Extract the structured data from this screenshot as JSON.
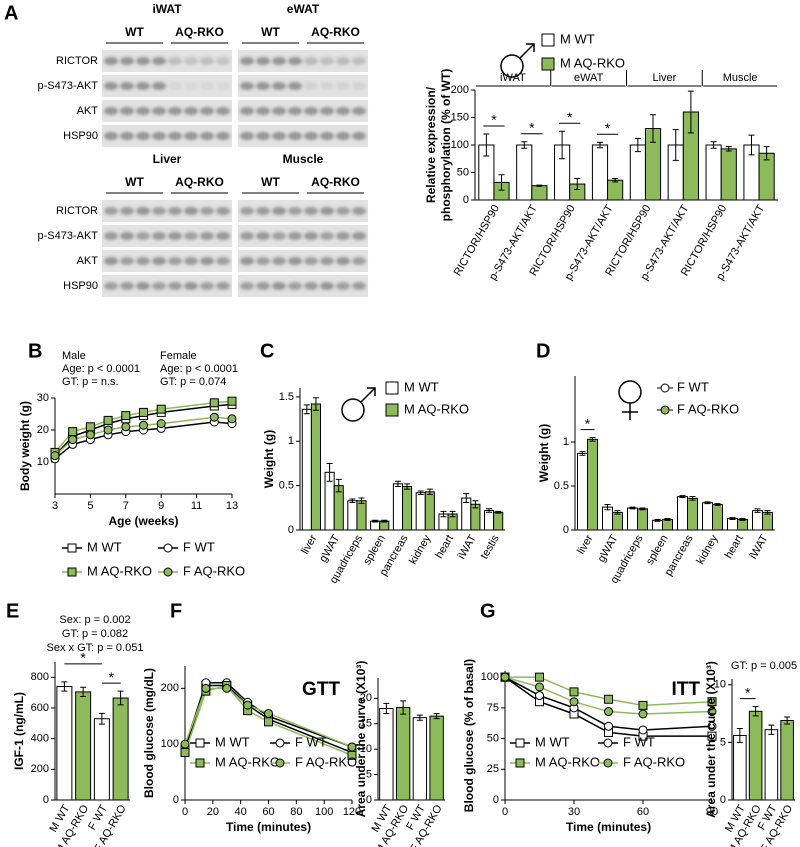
{
  "panel_labels": [
    "A",
    "B",
    "C",
    "D",
    "E",
    "F",
    "G"
  ],
  "blots": {
    "rows": [
      "RICTOR",
      "p-S473-AKT",
      "AKT",
      "HSP90"
    ],
    "panels": [
      {
        "tissue": "iWAT",
        "groups": [
          "WT",
          "AQ-RKO"
        ]
      },
      {
        "tissue": "eWAT",
        "groups": [
          "WT",
          "AQ-RKO"
        ]
      },
      {
        "tissue": "Liver",
        "groups": [
          "WT",
          "AQ-RKO"
        ]
      },
      {
        "tissue": "Muscle",
        "groups": [
          "WT",
          "AQ-RKO"
        ]
      }
    ]
  },
  "chart_data": [
    {
      "type": "bar",
      "ylabel": [
        "Relative expression/",
        "phosphorylation (% of WT)"
      ],
      "groups": [
        {
          "name": "iWAT",
          "categories": [
            "RICTOR/HSP90",
            "p-S473-AKT/AKT"
          ]
        },
        {
          "name": "eWAT",
          "categories": [
            "RICTOR/HSP90",
            "p-S473-AKT/AKT"
          ]
        },
        {
          "name": "Liver",
          "categories": [
            "RICTOR/HSP90",
            "p-S473-AKT/AKT"
          ]
        },
        {
          "name": "Muscle",
          "categories": [
            "RICTOR/HSP90",
            "p-S473-AKT/AKT"
          ]
        }
      ],
      "series": [
        {
          "name": "M WT",
          "color": "#ffffff",
          "values": [
            100,
            100,
            100,
            100,
            100,
            100,
            100,
            100
          ],
          "errors": [
            20,
            6,
            25,
            5,
            12,
            28,
            6,
            18
          ]
        },
        {
          "name": "M AQ-RKO",
          "color": "#8dbb5b",
          "values": [
            32,
            26,
            29,
            36,
            130,
            160,
            93,
            85
          ],
          "errors": [
            14,
            1,
            10,
            3,
            25,
            38,
            4,
            12
          ]
        }
      ],
      "significance": [
        true,
        true,
        true,
        true,
        false,
        false,
        false,
        false
      ],
      "significance_label": "*",
      "ylim": [
        0,
        200
      ],
      "yticks": [
        0,
        50,
        100,
        150,
        200
      ]
    },
    {
      "type": "line",
      "xlabel": "Age (weeks)",
      "ylabel": "Body weight (g)",
      "annotations": [
        "Male",
        "Age: p < 0.0001",
        "GT: p = n.s.",
        "Female",
        "Age: p < 0.0001",
        "GT: p = 0.074"
      ],
      "x": [
        3,
        4,
        5,
        6,
        7,
        8,
        9,
        12,
        13
      ],
      "xlim": [
        3,
        13
      ],
      "xticks": [
        3,
        5,
        7,
        9,
        11,
        13
      ],
      "ylim": [
        0,
        30
      ],
      "yticks": [
        10,
        20,
        30
      ],
      "series": [
        {
          "name": "M WT",
          "color": "#ffffff",
          "marker": "square",
          "values": [
            12,
            18,
            20,
            22,
            23.5,
            24.5,
            25.5,
            27.5,
            28
          ]
        },
        {
          "name": "F WT",
          "color": "#ffffff",
          "marker": "circle",
          "values": [
            11,
            15.5,
            17,
            18.5,
            19.5,
            20,
            20.5,
            22.5,
            22
          ]
        },
        {
          "name": "M AQ-RKO",
          "color": "#8dbb5b",
          "marker": "square",
          "values": [
            13,
            19.5,
            21,
            23,
            24.5,
            25.5,
            26.5,
            28.5,
            29
          ]
        },
        {
          "name": "F AQ-RKO",
          "color": "#8dbb5b",
          "marker": "circle",
          "values": [
            12,
            17,
            18.5,
            20,
            21,
            21.5,
            22,
            24,
            23.5
          ]
        }
      ]
    },
    {
      "type": "bar",
      "ylabel": "Weight (g)",
      "categories": [
        "liver",
        "gWAT",
        "quadriceps",
        "spleen",
        "pancreas",
        "kidney",
        "heart",
        "iWAT",
        "testis"
      ],
      "series": [
        {
          "name": "M WT",
          "color": "#ffffff",
          "values": [
            1.36,
            0.65,
            0.33,
            0.1,
            0.52,
            0.42,
            0.18,
            0.36,
            0.22
          ],
          "errors": [
            0.05,
            0.1,
            0.02,
            0.01,
            0.03,
            0.02,
            0.03,
            0.05,
            0.02
          ]
        },
        {
          "name": "M AQ-RKO",
          "color": "#8dbb5b",
          "values": [
            1.42,
            0.5,
            0.33,
            0.1,
            0.49,
            0.43,
            0.18,
            0.29,
            0.2
          ],
          "errors": [
            0.07,
            0.07,
            0.03,
            0.01,
            0.03,
            0.03,
            0.03,
            0.04,
            0.01
          ]
        }
      ],
      "ylim": [
        0,
        1.6
      ],
      "yticks": [
        0,
        0.5,
        1,
        1.5
      ]
    },
    {
      "type": "bar",
      "ylabel": "Weight (g)",
      "categories": [
        "liver",
        "gWAT",
        "quadriceps",
        "spleen",
        "pancreas",
        "kidney",
        "heart",
        "iWAT"
      ],
      "series": [
        {
          "name": "F WT",
          "color": "#ffffff",
          "marker": "circle",
          "values": [
            0.87,
            0.26,
            0.25,
            0.11,
            0.38,
            0.31,
            0.13,
            0.22
          ],
          "errors": [
            0.02,
            0.03,
            0.01,
            0.01,
            0.01,
            0.01,
            0.01,
            0.02
          ]
        },
        {
          "name": "F AQ-RKO",
          "color": "#8dbb5b",
          "marker": "circle",
          "values": [
            1.03,
            0.2,
            0.24,
            0.12,
            0.36,
            0.29,
            0.12,
            0.2
          ],
          "errors": [
            0.02,
            0.02,
            0.01,
            0.01,
            0.02,
            0.01,
            0.01,
            0.02
          ]
        }
      ],
      "significance": [
        true,
        false,
        false,
        false,
        false,
        false,
        false,
        false
      ],
      "significance_label": "*",
      "ylim": [
        0,
        1.75
      ],
      "yticks": [
        0,
        0.5,
        1
      ]
    },
    {
      "type": "bar",
      "ylabel": "IGF-1 (ng/mL)",
      "annotations": [
        "Sex: p = 0.002",
        "GT: p = 0.082",
        "Sex x GT: p = 0.051"
      ],
      "categories": [
        "M WT",
        "M AQ-RKO",
        "F WT",
        "F AQ-RKO"
      ],
      "values": [
        740,
        705,
        530,
        665
      ],
      "errors": [
        30,
        30,
        35,
        45
      ],
      "colors": [
        "#ffffff",
        "#8dbb5b",
        "#ffffff",
        "#8dbb5b"
      ],
      "comparisons": [
        [
          0,
          2
        ],
        [
          2,
          3
        ]
      ],
      "comparison_label": "*",
      "ylim": [
        0,
        900
      ],
      "yticks": [
        0,
        200,
        400,
        600,
        800
      ]
    },
    {
      "type": "line",
      "title": "GTT",
      "xlabel": "Time (minutes)",
      "ylabel": "Blood glucose (mg/dL)",
      "x": [
        0,
        15,
        30,
        45,
        60,
        120
      ],
      "xlim": [
        0,
        120
      ],
      "xticks": [
        0,
        20,
        40,
        60,
        80,
        100,
        120
      ],
      "ylim": [
        0,
        240
      ],
      "yticks": [
        0,
        100,
        200
      ],
      "series": [
        {
          "name": "M WT",
          "color": "#ffffff",
          "marker": "square",
          "values": [
            90,
            205,
            205,
            170,
            145,
            85
          ]
        },
        {
          "name": "F WT",
          "color": "#ffffff",
          "marker": "circle",
          "values": [
            95,
            210,
            210,
            175,
            150,
            95
          ]
        },
        {
          "name": "M AQ-RKO",
          "color": "#8dbb5b",
          "marker": "square",
          "values": [
            85,
            195,
            205,
            160,
            140,
            80
          ]
        },
        {
          "name": "F AQ-RKO",
          "color": "#8dbb5b",
          "marker": "circle",
          "values": [
            100,
            200,
            200,
            170,
            155,
            95
          ]
        }
      ]
    },
    {
      "type": "bar",
      "ylabel": "Area under the curve (X10³)",
      "categories": [
        "M WT",
        "M AQ-RKO",
        "F WT",
        "F AQ-RKO"
      ],
      "values": [
        18,
        18.2,
        16.2,
        16.5
      ],
      "errors": [
        1,
        1.3,
        0.5,
        0.5
      ],
      "colors": [
        "#ffffff",
        "#8dbb5b",
        "#ffffff",
        "#8dbb5b"
      ],
      "ylim": [
        0,
        24
      ],
      "yticks": [
        0,
        5,
        10,
        15,
        20
      ]
    },
    {
      "type": "line",
      "title": "ITT",
      "xlabel": "Time (minutes)",
      "ylabel": "Blood glucose (% of basal)",
      "x": [
        0,
        15,
        30,
        45,
        60,
        90
      ],
      "xlim": [
        0,
        90
      ],
      "xticks": [
        0,
        30,
        60,
        90
      ],
      "ylim": [
        0,
        105
      ],
      "yticks": [
        0,
        25,
        50,
        75,
        100
      ],
      "series": [
        {
          "name": "M WT",
          "color": "#ffffff",
          "marker": "square",
          "values": [
            100,
            80,
            70,
            55,
            52,
            52
          ]
        },
        {
          "name": "F WT",
          "color": "#ffffff",
          "marker": "circle",
          "values": [
            100,
            85,
            75,
            60,
            57,
            60
          ]
        },
        {
          "name": "M AQ-RKO",
          "color": "#8dbb5b",
          "marker": "square",
          "values": [
            100,
            100,
            88,
            82,
            77,
            80
          ]
        },
        {
          "name": "F AQ-RKO",
          "color": "#8dbb5b",
          "marker": "circle",
          "values": [
            100,
            92,
            80,
            72,
            70,
            72
          ]
        }
      ]
    },
    {
      "type": "bar",
      "ylabel": "Area under the curve (X10³)",
      "annotations": [
        "GT: p = 0.005"
      ],
      "categories": [
        "M WT",
        "M AQ-RKO",
        "F WT",
        "F AQ-RKO"
      ],
      "values": [
        5.6,
        7.7,
        6.1,
        6.9
      ],
      "errors": [
        0.6,
        0.4,
        0.4,
        0.3
      ],
      "colors": [
        "#ffffff",
        "#8dbb5b",
        "#ffffff",
        "#8dbb5b"
      ],
      "comparisons": [
        [
          0,
          1
        ]
      ],
      "comparison_label": "*",
      "ylim": [
        0,
        10.5
      ],
      "yticks": [
        0,
        5,
        10
      ]
    }
  ]
}
